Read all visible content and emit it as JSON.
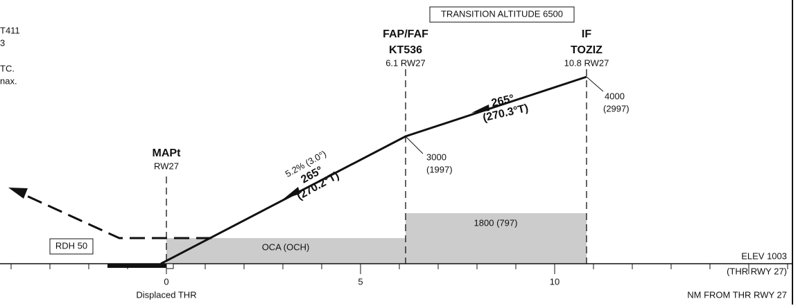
{
  "header": {
    "transition_altitude": "TRANSITION ALTITUDE 6500"
  },
  "left_notes": [
    "T411",
    "3",
    "TC.",
    "nax."
  ],
  "fixes": [
    {
      "name": "FAP/FAF",
      "id": "KT536",
      "distance": "6.1 RW27",
      "altitude": "3000",
      "height": "(1997)"
    },
    {
      "name": "IF",
      "id": "TOZIZ",
      "distance": "10.8 RW27",
      "altitude": "4000",
      "height": "(2997)"
    },
    {
      "name": "MAPt",
      "distance": "RW27"
    }
  ],
  "segments": [
    {
      "course": "265°",
      "true_course": "(270.3°T)"
    },
    {
      "gradient": "5.2% (3.0°)",
      "course": "265°",
      "true_course": "(270.2°T)"
    }
  ],
  "areas": {
    "upper": "1800 (797)",
    "lower": "OCA (OCH)"
  },
  "rdh": "RDH 50",
  "elevation": "ELEV 1003",
  "elevation_ref": "(THR RWY 27)",
  "axis": {
    "ticks": [
      "0",
      "5",
      "10"
    ],
    "origin_label": "Displaced THR",
    "title": "NM FROM THR RWY 27"
  }
}
